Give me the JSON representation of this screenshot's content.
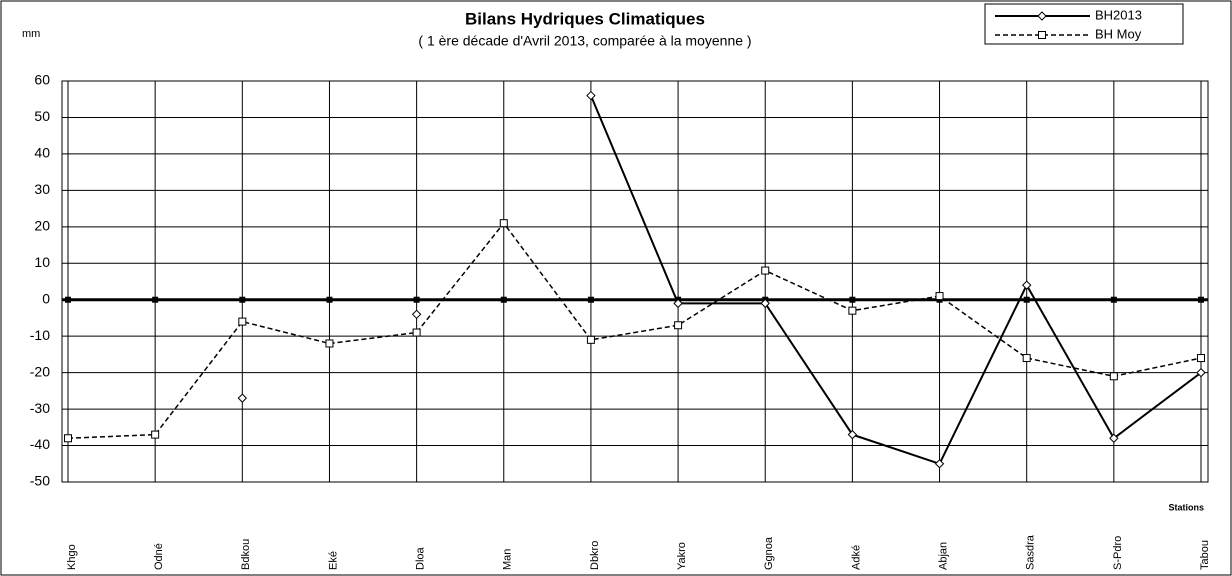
{
  "chart_data": {
    "type": "line",
    "title": "Bilans Hydriques Climatiques",
    "subtitle": "( 1 ère décade d'Avril 2013, comparée à la moyenne )",
    "y_label": "mm",
    "x_label": "Stations",
    "categories": [
      "Khgo",
      "Odné",
      "Bdkou",
      "Eké",
      "Dloa",
      "Man",
      "Dbkro",
      "Yakro",
      "Ggnoa",
      "Adké",
      "Abjan",
      "Sasdra",
      "S-Pdro",
      "Tabou"
    ],
    "series": [
      {
        "name": "BH2013",
        "color": "#000000",
        "dash": false,
        "marker": "diamond",
        "values": [
          null,
          null,
          -27,
          null,
          -4,
          null,
          56,
          -1,
          -1,
          -37,
          -45,
          4,
          -38,
          -20
        ]
      },
      {
        "name": "BH Moy",
        "color": "#000000",
        "dash": true,
        "marker": "square",
        "values": [
          -38,
          -37,
          -6,
          -12,
          -9,
          21,
          -11,
          -7,
          8,
          -3,
          1,
          -16,
          -21,
          -16
        ]
      }
    ],
    "ylim": [
      -50,
      60
    ],
    "yticks": [
      -50,
      -40,
      -30,
      -20,
      -10,
      0,
      10,
      20,
      30,
      40,
      50,
      60
    ],
    "grid": true,
    "legend": "top-right"
  }
}
